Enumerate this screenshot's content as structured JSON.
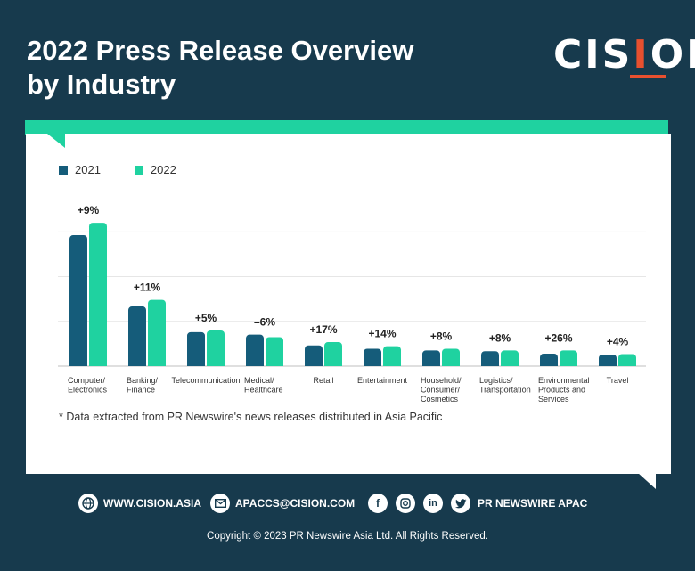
{
  "header": {
    "title_line1": "2022 Press Release Overview",
    "title_line2": "by Industry",
    "logo": "CISION"
  },
  "chart_data": {
    "type": "bar",
    "categories": [
      [
        "Computer/",
        "Electronics"
      ],
      [
        "Banking/",
        "Finance"
      ],
      [
        "Telecommunication"
      ],
      [
        "Medical/",
        "Healthcare"
      ],
      [
        "Retail"
      ],
      [
        "Entertainment"
      ],
      [
        "Household/",
        "Consumer/",
        "Cosmetics"
      ],
      [
        "Logistics/",
        "Transportation"
      ],
      [
        "Environmental",
        "Products and",
        "Services"
      ],
      [
        "Travel"
      ]
    ],
    "series": [
      {
        "name": "2021",
        "color": "#155c7a",
        "values": [
          158,
          72,
          41,
          38,
          25,
          21,
          19,
          18,
          15,
          14
        ]
      },
      {
        "name": "2022",
        "color": "#1fd2a0",
        "values": [
          173,
          80,
          43,
          35,
          29,
          24,
          21,
          19,
          19,
          14.5
        ]
      }
    ],
    "annotations": [
      "+9%",
      "+11%",
      "+5%",
      "–6%",
      "+17%",
      "+14%",
      "+8%",
      "+8%",
      "+26%",
      "+4%"
    ],
    "legend_position": "top-left",
    "grid": true
  },
  "footnote": "* Data extracted from PR Newswire's news releases distributed in Asia Pacific",
  "footer": {
    "website": "WWW.CISION.ASIA",
    "email": "APACCS@CISION.COM",
    "social": "PR NEWSWIRE APAC",
    "copyright": "Copyright © 2023 PR Newswire Asia Ltd. All Rights Reserved."
  }
}
